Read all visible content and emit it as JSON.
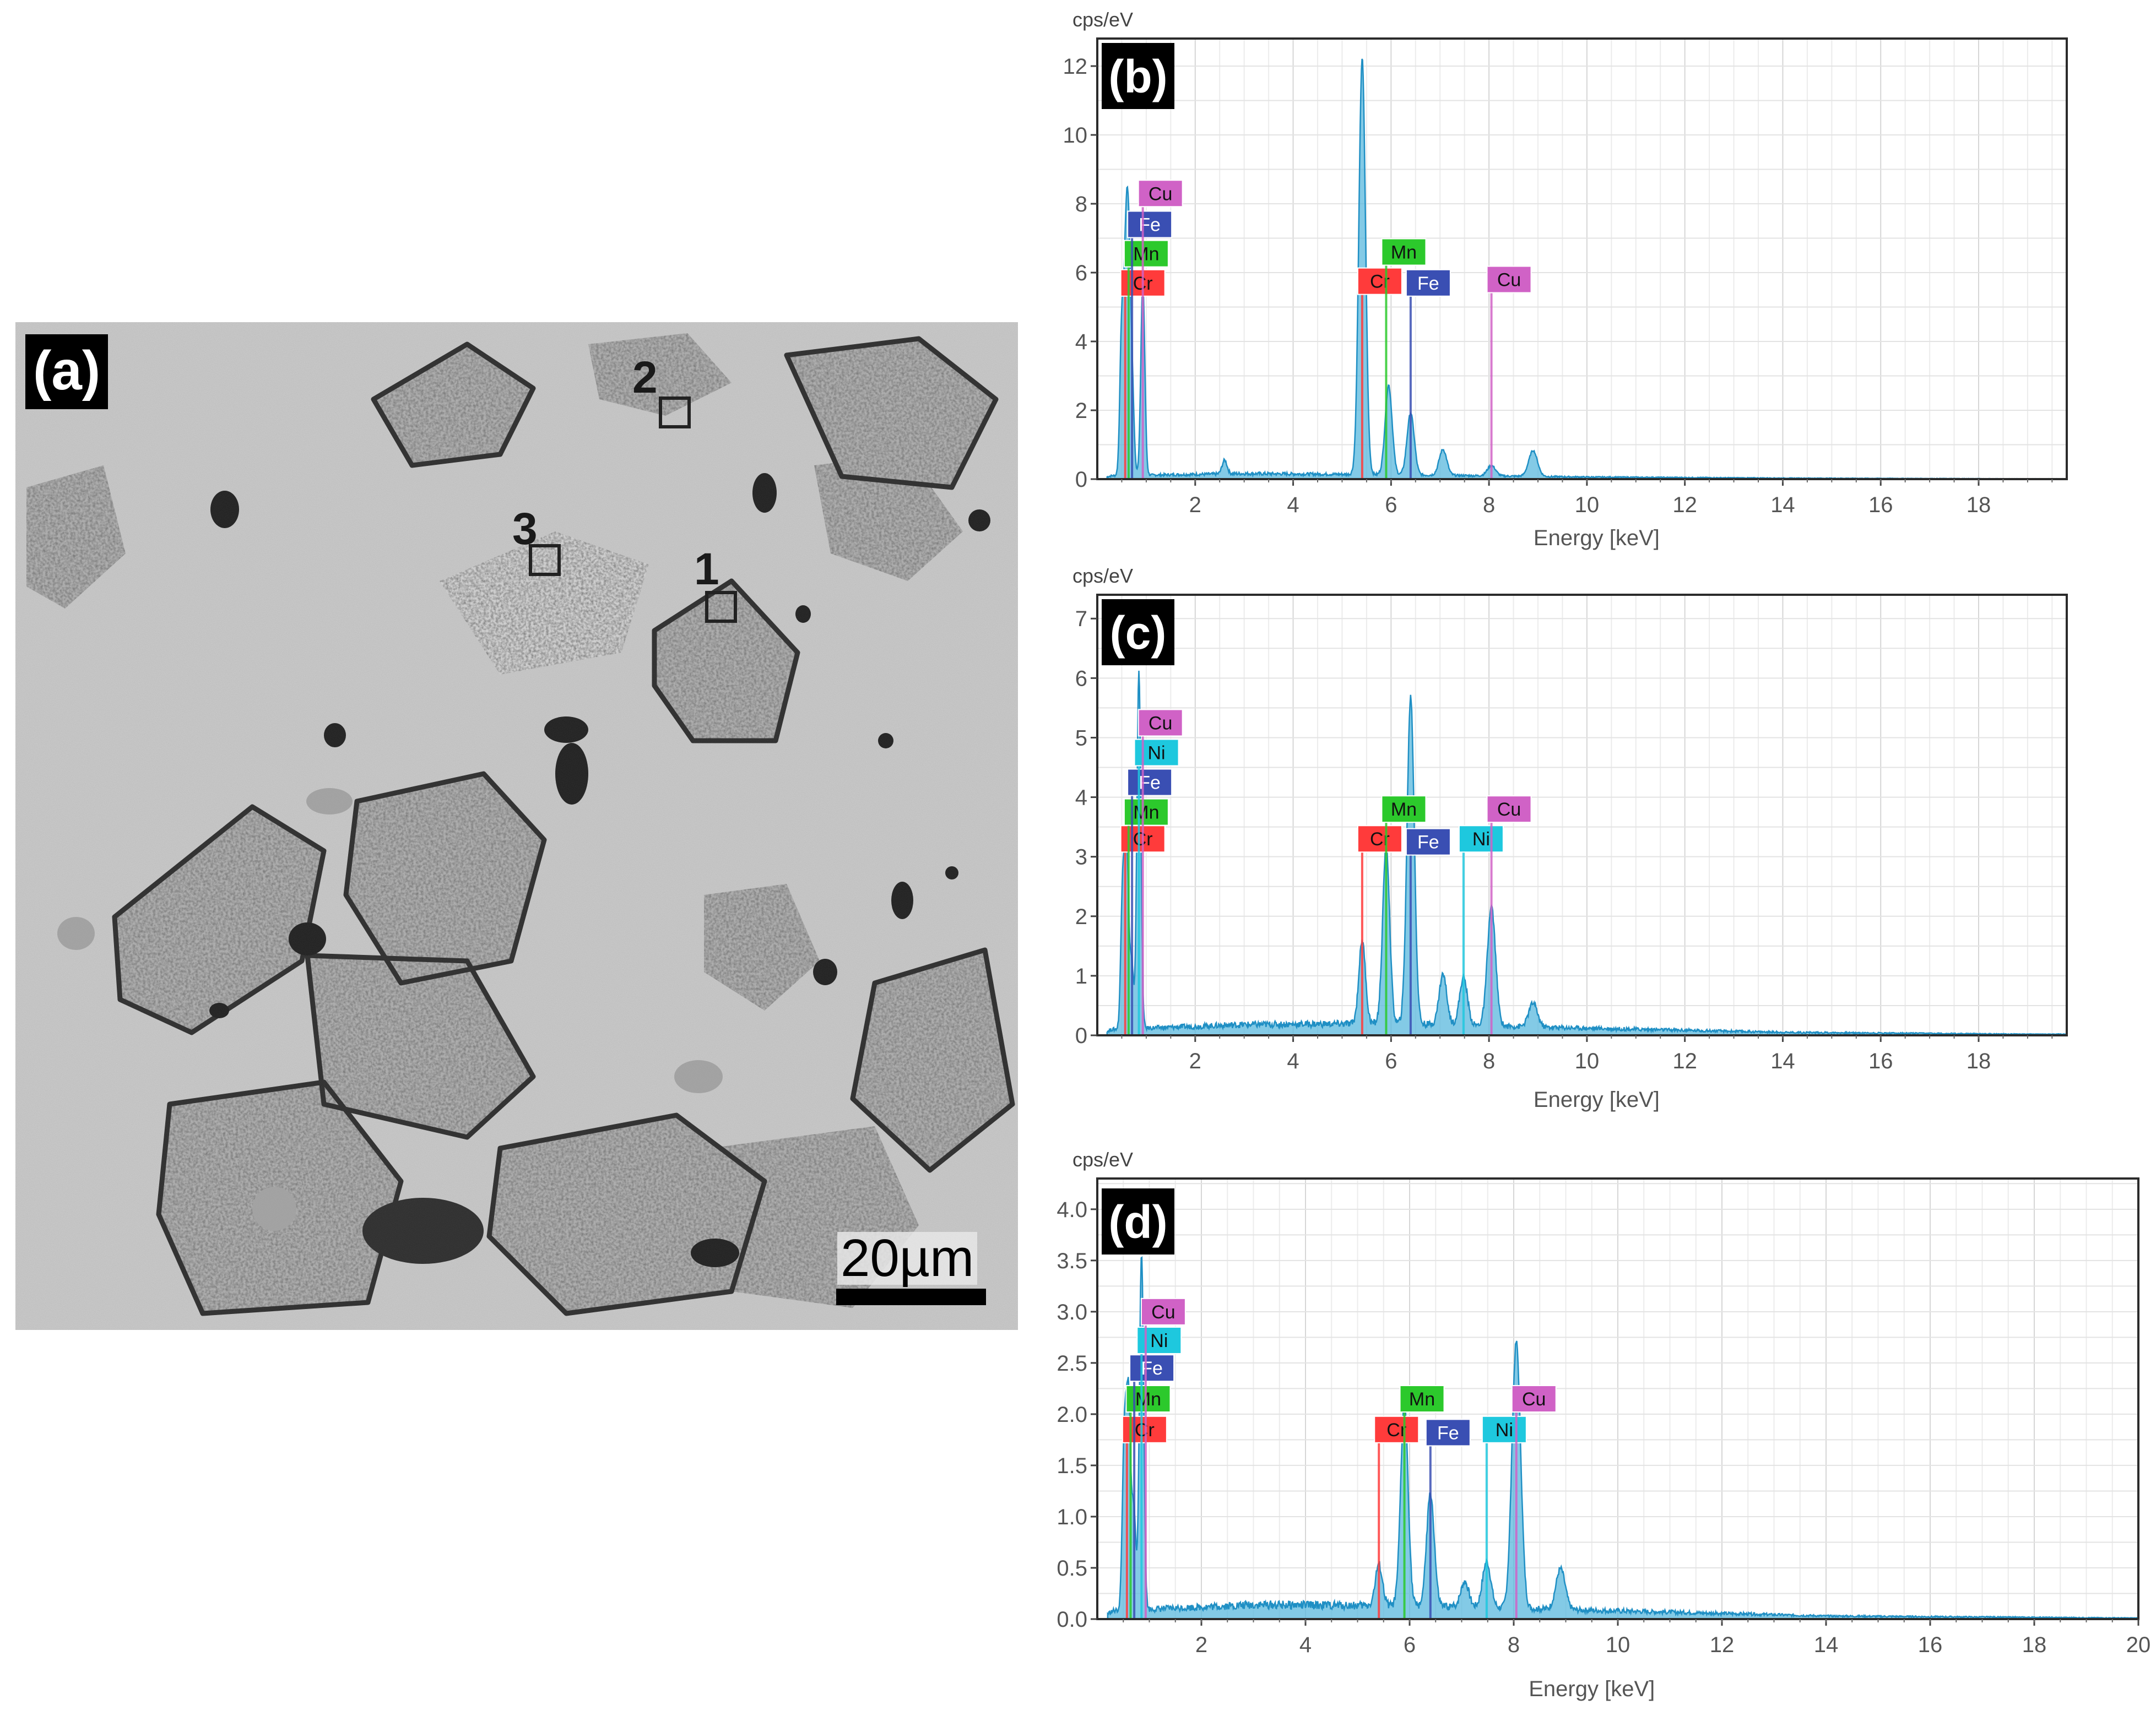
{
  "sem_image": {
    "panel_label": "(a)",
    "regions": [
      {
        "label": "1"
      },
      {
        "label": "2"
      },
      {
        "label": "3"
      }
    ],
    "scale_bar": "20µm"
  },
  "chart_data": [
    {
      "type": "line",
      "panel_label": "(b)",
      "ylabel": "cps/eV",
      "xlabel": "Energy [keV]",
      "xlim": [
        0,
        19.8
      ],
      "ylim": [
        0,
        12.8
      ],
      "x_ticks": [
        2,
        4,
        6,
        8,
        10,
        12,
        14,
        16,
        18
      ],
      "x_tick_labels": [
        "2",
        "4",
        "6",
        "8",
        "10",
        "12",
        "14",
        "16",
        "18"
      ],
      "y_ticks": [
        0,
        2,
        4,
        6,
        8,
        10,
        12
      ],
      "y_tick_labels": [
        "0",
        "2",
        "4",
        "6",
        "8",
        "10",
        "12"
      ],
      "grid": true,
      "peaks": [
        {
          "x": 0.5,
          "y": 4.3
        },
        {
          "x": 0.58,
          "y": 5.4
        },
        {
          "x": 0.64,
          "y": 5.7
        },
        {
          "x": 0.71,
          "y": 2.6
        },
        {
          "x": 0.93,
          "y": 5.6
        },
        {
          "x": 2.6,
          "y": 0.4
        },
        {
          "x": 5.41,
          "y": 12.1
        },
        {
          "x": 5.95,
          "y": 2.6
        },
        {
          "x": 6.4,
          "y": 1.8
        },
        {
          "x": 7.06,
          "y": 0.75
        },
        {
          "x": 8.05,
          "y": 0.3
        },
        {
          "x": 8.9,
          "y": 0.75
        }
      ],
      "background": [
        {
          "x": 0.3,
          "y": 0.1
        },
        {
          "x": 3.0,
          "y": 0.16
        },
        {
          "x": 6.0,
          "y": 0.13
        },
        {
          "x": 10.0,
          "y": 0.06
        },
        {
          "x": 14.0,
          "y": 0.03
        },
        {
          "x": 19.0,
          "y": 0.01
        }
      ],
      "element_markers": [
        {
          "element": "Cr",
          "x": 0.57,
          "label_y": 5.7,
          "color": "#ff3b3b"
        },
        {
          "element": "Mn",
          "x": 0.64,
          "label_y": 6.55,
          "color": "#2cc92c"
        },
        {
          "element": "Fe",
          "x": 0.71,
          "label_y": 7.4,
          "color": "#3a4fb3"
        },
        {
          "element": "Cu",
          "x": 0.93,
          "label_y": 8.3,
          "color": "#d062c6"
        },
        {
          "element": "Cr",
          "x": 5.41,
          "label_y": 5.75,
          "color": "#ff3b3b"
        },
        {
          "element": "Mn",
          "x": 5.9,
          "label_y": 6.6,
          "color": "#2cc92c"
        },
        {
          "element": "Fe",
          "x": 6.4,
          "label_y": 5.7,
          "color": "#3a4fb3"
        },
        {
          "element": "Cu",
          "x": 8.05,
          "label_y": 5.8,
          "color": "#d062c6"
        }
      ]
    },
    {
      "type": "line",
      "panel_label": "(c)",
      "ylabel": "cps/eV",
      "xlabel": "Energy [keV]",
      "xlim": [
        0,
        19.8
      ],
      "ylim": [
        0,
        7.4
      ],
      "x_ticks": [
        2,
        4,
        6,
        8,
        10,
        12,
        14,
        16,
        18
      ],
      "x_tick_labels": [
        "2",
        "4",
        "6",
        "8",
        "10",
        "12",
        "14",
        "16",
        "18"
      ],
      "y_ticks": [
        0,
        1,
        2,
        3,
        4,
        5,
        6,
        7
      ],
      "y_tick_labels": [
        "0",
        "1",
        "2",
        "3",
        "4",
        "5",
        "6",
        "7"
      ],
      "grid": true,
      "peaks": [
        {
          "x": 0.52,
          "y": 2.4
        },
        {
          "x": 0.6,
          "y": 3.0
        },
        {
          "x": 0.7,
          "y": 1.1
        },
        {
          "x": 0.85,
          "y": 6.0
        },
        {
          "x": 5.41,
          "y": 1.4
        },
        {
          "x": 5.9,
          "y": 3.0
        },
        {
          "x": 6.4,
          "y": 5.5
        },
        {
          "x": 7.06,
          "y": 0.85
        },
        {
          "x": 7.48,
          "y": 0.8
        },
        {
          "x": 8.05,
          "y": 2.0
        },
        {
          "x": 8.9,
          "y": 0.4
        }
      ],
      "background": [
        {
          "x": 0.3,
          "y": 0.1
        },
        {
          "x": 3.0,
          "y": 0.18
        },
        {
          "x": 6.0,
          "y": 0.2
        },
        {
          "x": 10.0,
          "y": 0.12
        },
        {
          "x": 14.0,
          "y": 0.05
        },
        {
          "x": 19.0,
          "y": 0.02
        }
      ],
      "element_markers": [
        {
          "element": "Cr",
          "x": 0.57,
          "label_y": 3.3,
          "color": "#ff3b3b"
        },
        {
          "element": "Mn",
          "x": 0.64,
          "label_y": 3.75,
          "color": "#2cc92c"
        },
        {
          "element": "Fe",
          "x": 0.71,
          "label_y": 4.25,
          "color": "#3a4fb3"
        },
        {
          "element": "Ni",
          "x": 0.85,
          "label_y": 4.75,
          "color": "#1ec8de"
        },
        {
          "element": "Cu",
          "x": 0.93,
          "label_y": 5.25,
          "color": "#d062c6"
        },
        {
          "element": "Cr",
          "x": 5.41,
          "label_y": 3.3,
          "color": "#ff3b3b"
        },
        {
          "element": "Mn",
          "x": 5.9,
          "label_y": 3.8,
          "color": "#2cc92c"
        },
        {
          "element": "Fe",
          "x": 6.4,
          "label_y": 3.25,
          "color": "#3a4fb3"
        },
        {
          "element": "Ni",
          "x": 7.48,
          "label_y": 3.3,
          "color": "#1ec8de"
        },
        {
          "element": "Cu",
          "x": 8.05,
          "label_y": 3.8,
          "color": "#d062c6"
        }
      ]
    },
    {
      "type": "line",
      "panel_label": "(d)",
      "ylabel": "cps/eV",
      "xlabel": "Energy [keV]",
      "xlim": [
        0,
        20
      ],
      "ylim": [
        0,
        4.3
      ],
      "x_ticks": [
        2,
        4,
        6,
        8,
        10,
        12,
        14,
        16,
        18,
        20
      ],
      "x_tick_labels": [
        "2",
        "4",
        "6",
        "8",
        "10",
        "12",
        "14",
        "16",
        "18",
        "20"
      ],
      "y_ticks": [
        0,
        0.5,
        1.0,
        1.5,
        2.0,
        2.5,
        3.0,
        3.5,
        4.0
      ],
      "y_tick_labels": [
        "0.0",
        "0.5",
        "1.0",
        "1.5",
        "2.0",
        "2.5",
        "3.0",
        "3.5",
        "4.0"
      ],
      "grid": true,
      "peaks": [
        {
          "x": 0.52,
          "y": 1.7
        },
        {
          "x": 0.6,
          "y": 2.0
        },
        {
          "x": 0.7,
          "y": 1.0
        },
        {
          "x": 0.85,
          "y": 3.5
        },
        {
          "x": 5.41,
          "y": 0.4
        },
        {
          "x": 5.9,
          "y": 2.0
        },
        {
          "x": 6.4,
          "y": 1.1
        },
        {
          "x": 7.06,
          "y": 0.25
        },
        {
          "x": 7.48,
          "y": 0.45
        },
        {
          "x": 8.05,
          "y": 2.6
        },
        {
          "x": 8.9,
          "y": 0.4
        }
      ],
      "background": [
        {
          "x": 0.3,
          "y": 0.08
        },
        {
          "x": 3.0,
          "y": 0.14
        },
        {
          "x": 6.0,
          "y": 0.13
        },
        {
          "x": 10.0,
          "y": 0.08
        },
        {
          "x": 14.0,
          "y": 0.03
        },
        {
          "x": 20.0,
          "y": 0.01
        }
      ],
      "element_markers": [
        {
          "element": "Cr",
          "x": 0.57,
          "label_y": 1.85,
          "color": "#ff3b3b"
        },
        {
          "element": "Mn",
          "x": 0.64,
          "label_y": 2.15,
          "color": "#2cc92c"
        },
        {
          "element": "Fe",
          "x": 0.71,
          "label_y": 2.45,
          "color": "#3a4fb3"
        },
        {
          "element": "Ni",
          "x": 0.85,
          "label_y": 2.72,
          "color": "#1ec8de"
        },
        {
          "element": "Cu",
          "x": 0.93,
          "label_y": 3.0,
          "color": "#d062c6"
        },
        {
          "element": "Cr",
          "x": 5.41,
          "label_y": 1.85,
          "color": "#ff3b3b"
        },
        {
          "element": "Mn",
          "x": 5.9,
          "label_y": 2.15,
          "color": "#2cc92c"
        },
        {
          "element": "Fe",
          "x": 6.4,
          "label_y": 1.82,
          "color": "#3a4fb3"
        },
        {
          "element": "Ni",
          "x": 7.48,
          "label_y": 1.85,
          "color": "#1ec8de"
        },
        {
          "element": "Cu",
          "x": 8.05,
          "label_y": 2.15,
          "color": "#d062c6"
        }
      ]
    }
  ]
}
